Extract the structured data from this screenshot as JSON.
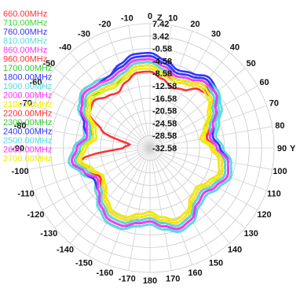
{
  "chart_data": {
    "type": "polar",
    "axis_label_top": "Z",
    "axis_label_right": "Y",
    "radial_ticks": [
      "7.42",
      "3.42",
      "-0.58",
      "-4.58",
      "-8.58",
      "-12.58",
      "-16.58",
      "-20.58",
      "-24.58",
      "-28.58",
      "-32.58"
    ],
    "angle_ticks": [
      0,
      10,
      20,
      30,
      40,
      50,
      60,
      70,
      80,
      90,
      100,
      110,
      120,
      130,
      140,
      150,
      160,
      170,
      180,
      -170,
      -160,
      -150,
      -140,
      -130,
      -120,
      -110,
      -100,
      -90,
      -80,
      -70,
      -60,
      -50,
      -40,
      -30,
      -20,
      -10
    ],
    "rlim": [
      -32.58,
      7.42
    ],
    "series": [
      {
        "name": "660.00MHz",
        "color": "#ff3333",
        "values": [
          -8,
          -10,
          -12,
          -11,
          -8,
          -7,
          -10,
          -14,
          -16,
          -13,
          -10,
          -9,
          -11,
          -13,
          -12,
          -9,
          -8,
          -10,
          -12,
          -11,
          -9,
          -9,
          -11,
          -14,
          -15,
          -12,
          -10,
          -24,
          -26,
          -16,
          -10,
          -9,
          -11,
          -12,
          -10,
          -8
        ]
      },
      {
        "name": "710.00MHz",
        "color": "#33dd33",
        "values": [
          -6,
          -8,
          -9,
          -8,
          -6,
          -5,
          -7,
          -11,
          -13,
          -11,
          -8,
          -7,
          -9,
          -11,
          -10,
          -7,
          -6,
          -8,
          -10,
          -9,
          -7,
          -7,
          -9,
          -12,
          -13,
          -10,
          -8,
          -11,
          -14,
          -12,
          -8,
          -7,
          -9,
          -10,
          -8,
          -6
        ]
      },
      {
        "name": "760.00MHz",
        "color": "#3333ff",
        "values": [
          -2,
          -4,
          -6,
          -5,
          -3,
          -4,
          -7,
          -10,
          -12,
          -10,
          -6,
          -5,
          -7,
          -9,
          -8,
          -5,
          -4,
          -6,
          -8,
          -7,
          -5,
          -5,
          -7,
          -10,
          -12,
          -9,
          -6,
          -8,
          -11,
          -10,
          -6,
          -4,
          -5,
          -6,
          -4,
          -2
        ]
      },
      {
        "name": "810.00MHz",
        "color": "#55dddd",
        "values": [
          -4,
          -6,
          -7,
          -6,
          -4,
          -4,
          -6,
          -9,
          -11,
          -9,
          -6,
          -5,
          -7,
          -9,
          -8,
          -6,
          -5,
          -6,
          -8,
          -7,
          -6,
          -6,
          -8,
          -11,
          -12,
          -9,
          -7,
          -9,
          -12,
          -10,
          -7,
          -5,
          -6,
          -7,
          -6,
          -4
        ]
      },
      {
        "name": "860.00MHz",
        "color": "#ff33ff",
        "values": [
          -3,
          -5,
          -7,
          -6,
          -4,
          -5,
          -8,
          -11,
          -13,
          -11,
          -7,
          -6,
          -8,
          -10,
          -9,
          -6,
          -5,
          -7,
          -9,
          -8,
          -6,
          -6,
          -8,
          -11,
          -13,
          -10,
          -7,
          -9,
          -12,
          -11,
          -7,
          -4,
          -5,
          -6,
          -5,
          -3
        ]
      },
      {
        "name": "960.00MHz",
        "color": "#ff3333",
        "values": [
          -5,
          -7,
          -8,
          -7,
          -5,
          -6,
          -9,
          -12,
          -14,
          -12,
          -8,
          -7,
          -9,
          -11,
          -10,
          -7,
          -6,
          -8,
          -10,
          -9,
          -7,
          -7,
          -9,
          -12,
          -14,
          -11,
          -8,
          -10,
          -13,
          -12,
          -8,
          -6,
          -7,
          -8,
          -7,
          -5
        ]
      },
      {
        "name": "1700.00MHz",
        "color": "#33cc33",
        "values": [
          -4,
          -6,
          -8,
          -7,
          -5,
          -5,
          -8,
          -11,
          -12,
          -10,
          -7,
          -6,
          -8,
          -10,
          -9,
          -6,
          -5,
          -7,
          -9,
          -8,
          -6,
          -6,
          -8,
          -11,
          -12,
          -10,
          -7,
          -9,
          -12,
          -11,
          -7,
          -5,
          -6,
          -7,
          -6,
          -4
        ]
      },
      {
        "name": "1800.00MHz",
        "color": "#3333ff",
        "values": [
          -5,
          -7,
          -9,
          -8,
          -6,
          -6,
          -9,
          -12,
          -13,
          -11,
          -8,
          -7,
          -9,
          -11,
          -10,
          -7,
          -6,
          -8,
          -10,
          -9,
          -7,
          -7,
          -9,
          -12,
          -13,
          -11,
          -8,
          -10,
          -13,
          -12,
          -8,
          -6,
          -7,
          -8,
          -7,
          -5
        ]
      },
      {
        "name": "1900.00MHz",
        "color": "#55dddd",
        "values": [
          -3,
          -5,
          -7,
          -6,
          -4,
          -4,
          -7,
          -10,
          -12,
          -10,
          -6,
          -5,
          -7,
          -9,
          -8,
          -5,
          -4,
          -6,
          -8,
          -7,
          -5,
          -5,
          -7,
          -10,
          -12,
          -9,
          -6,
          -8,
          -11,
          -10,
          -6,
          -4,
          -5,
          -6,
          -5,
          -3
        ]
      },
      {
        "name": "2000.00MHz",
        "color": "#ff33ff",
        "values": [
          -6,
          -8,
          -10,
          -9,
          -7,
          -7,
          -10,
          -13,
          -14,
          -12,
          -9,
          -8,
          -10,
          -12,
          -11,
          -8,
          -7,
          -9,
          -11,
          -10,
          -8,
          -8,
          -10,
          -13,
          -14,
          -12,
          -9,
          -11,
          -14,
          -13,
          -9,
          -7,
          -8,
          -9,
          -8,
          -6
        ]
      },
      {
        "name": "2100.00MHz",
        "color": "#eeee00",
        "values": [
          -7,
          -9,
          -10,
          -9,
          -7,
          -8,
          -11,
          -14,
          -16,
          -13,
          -10,
          -9,
          -11,
          -13,
          -12,
          -9,
          -8,
          -10,
          -12,
          -11,
          -9,
          -9,
          -11,
          -14,
          -15,
          -13,
          -10,
          -12,
          -15,
          -14,
          -10,
          -8,
          -9,
          -10,
          -9,
          -7
        ]
      },
      {
        "name": "2200.00MHz",
        "color": "#ff3333",
        "values": [
          -5,
          -7,
          -9,
          -8,
          -6,
          -6,
          -9,
          -12,
          -14,
          -12,
          -8,
          -7,
          -9,
          -11,
          -10,
          -7,
          -6,
          -8,
          -10,
          -9,
          -7,
          -7,
          -9,
          -12,
          -14,
          -11,
          -8,
          -10,
          -13,
          -12,
          -8,
          -6,
          -7,
          -8,
          -7,
          -5
        ]
      },
      {
        "name": "2300.00MHz",
        "color": "#33cc33",
        "values": [
          -4,
          -6,
          -8,
          -7,
          -5,
          -5,
          -8,
          -11,
          -13,
          -11,
          -7,
          -6,
          -8,
          -10,
          -9,
          -6,
          -5,
          -7,
          -9,
          -8,
          -6,
          -6,
          -8,
          -11,
          -13,
          -10,
          -7,
          -9,
          -12,
          -11,
          -7,
          -5,
          -6,
          -7,
          -6,
          -4
        ]
      },
      {
        "name": "2400.00MHz",
        "color": "#3333ff",
        "values": [
          -3,
          -5,
          -7,
          -6,
          -4,
          -5,
          -8,
          -11,
          -12,
          -10,
          -7,
          -6,
          -8,
          -10,
          -9,
          -6,
          -5,
          -7,
          -9,
          -8,
          -6,
          -6,
          -8,
          -11,
          -12,
          -10,
          -7,
          -9,
          -12,
          -10,
          -7,
          -5,
          -6,
          -6,
          -5,
          -3
        ]
      },
      {
        "name": "2500.00MHz",
        "color": "#55dddd",
        "values": [
          -5,
          -7,
          -8,
          -7,
          -5,
          -6,
          -9,
          -12,
          -13,
          -11,
          -8,
          -7,
          -9,
          -11,
          -10,
          -7,
          -6,
          -8,
          -10,
          -9,
          -7,
          -7,
          -9,
          -12,
          -13,
          -11,
          -8,
          -10,
          -13,
          -12,
          -8,
          -6,
          -7,
          -8,
          -7,
          -5
        ]
      },
      {
        "name": "2600.00MHz",
        "color": "#ff33ff",
        "values": [
          -4,
          -6,
          -8,
          -7,
          -5,
          -5,
          -8,
          -11,
          -13,
          -11,
          -7,
          -6,
          -8,
          -10,
          -9,
          -6,
          -5,
          -7,
          -9,
          -8,
          -6,
          -6,
          -8,
          -11,
          -13,
          -10,
          -7,
          -9,
          -12,
          -11,
          -7,
          -5,
          -6,
          -7,
          -6,
          -4
        ]
      },
      {
        "name": "2700.00MHz",
        "color": "#eeee00",
        "values": [
          -6,
          -8,
          -9,
          -8,
          -6,
          -7,
          -10,
          -13,
          -15,
          -12,
          -9,
          -8,
          -10,
          -12,
          -11,
          -8,
          -7,
          -9,
          -11,
          -10,
          -8,
          -8,
          -10,
          -13,
          -15,
          -12,
          -9,
          -11,
          -14,
          -13,
          -9,
          -7,
          -8,
          -9,
          -8,
          -6
        ]
      }
    ]
  }
}
